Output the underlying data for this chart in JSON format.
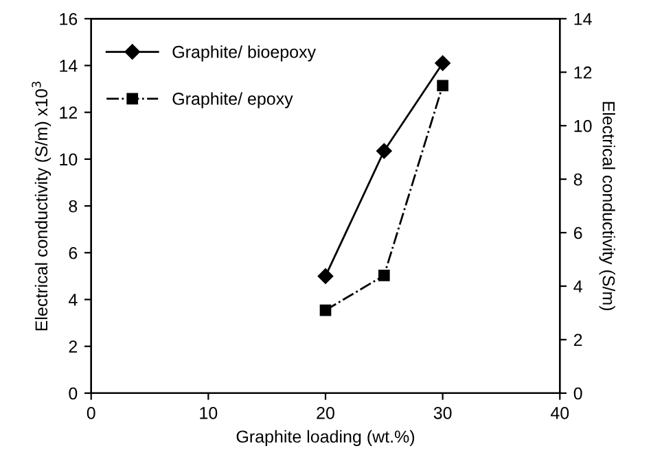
{
  "chart_data": {
    "type": "line",
    "xlabel": "Graphite loading (wt.%)",
    "ylabel": "Electrical conductivity (S/m) x10$^{3}$",
    "y2label": "Electrical conductivity (S/m)",
    "x": [
      20,
      25,
      30
    ],
    "xlim": [
      0,
      40
    ],
    "xticks": [
      0,
      10,
      20,
      30,
      40
    ],
    "ylim": [
      0,
      16
    ],
    "yticks": [
      0,
      2,
      4,
      6,
      8,
      10,
      12,
      14,
      16
    ],
    "y2lim": [
      0,
      14
    ],
    "y2ticks": [
      0,
      2,
      4,
      6,
      8,
      10,
      12,
      14
    ],
    "legend": "top left",
    "grid": false,
    "series": [
      {
        "name": "Graphite/ bioepoxy",
        "color": "#000000",
        "values": [
          5.0,
          10.35,
          14.1
        ],
        "marker": "diamond",
        "line_style": "solid"
      },
      {
        "name": "Graphite/ epoxy",
        "color": "#000000",
        "values": [
          3.1,
          4.4,
          11.5
        ],
        "marker": "square",
        "line_style": "dashdot",
        "axis": "y2"
      }
    ]
  }
}
